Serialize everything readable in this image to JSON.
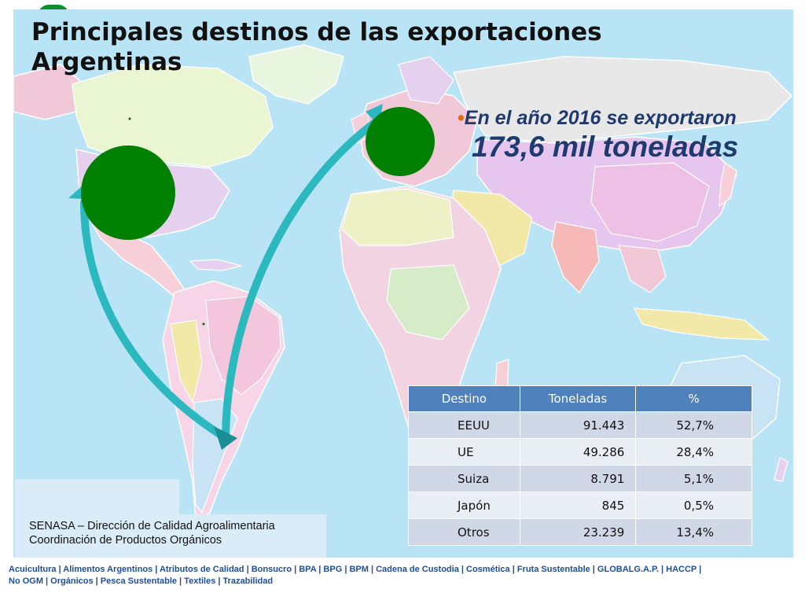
{
  "slide": {
    "title": "Principales destinos de las exportaciones Argentinas",
    "bullet_prefix": "•",
    "bullet_text": "En el año 2016 se exportaron",
    "highlight_amount": "173,6 mil toneladas"
  },
  "map": {
    "ocean_color": "#b9e4f5",
    "bubble_color": "#008000",
    "arrow_color": "#2bb8bf",
    "destinations": [
      {
        "name": "EEUU",
        "percent": 52.7
      },
      {
        "name": "UE",
        "percent": 28.4
      }
    ]
  },
  "table": {
    "headers": [
      "Destino",
      "Toneladas",
      "%"
    ],
    "rows": [
      {
        "destino": "EEUU",
        "toneladas": "91.443",
        "pct": "52,7%"
      },
      {
        "destino": "UE",
        "toneladas": "49.286",
        "pct": "28,4%"
      },
      {
        "destino": "Suiza",
        "toneladas": "8.791",
        "pct": "5,1%"
      },
      {
        "destino": "Japón",
        "toneladas": "845",
        "pct": "0,5%"
      },
      {
        "destino": "Otros",
        "toneladas": "23.239",
        "pct": "13,4%"
      }
    ]
  },
  "source": {
    "line1": "SENASA – Dirección de Calidad Agroalimentaria",
    "line2": "Coordinación de Productos Orgánicos"
  },
  "footer": {
    "line1": "Acuicultura  |  Alimentos Argentinos  |  Atributos de Calidad  |  Bonsucro  |  BPA |  BPG |  BPM  |  Cadena de Custodia  |  Cosmética  |  Fruta Sustentable  | GLOBALG.A.P.  |  HACCP  |",
    "line2": "No OGM  |  Orgánicos |  Pesca Sustentable  | Textiles | Trazabilidad"
  }
}
